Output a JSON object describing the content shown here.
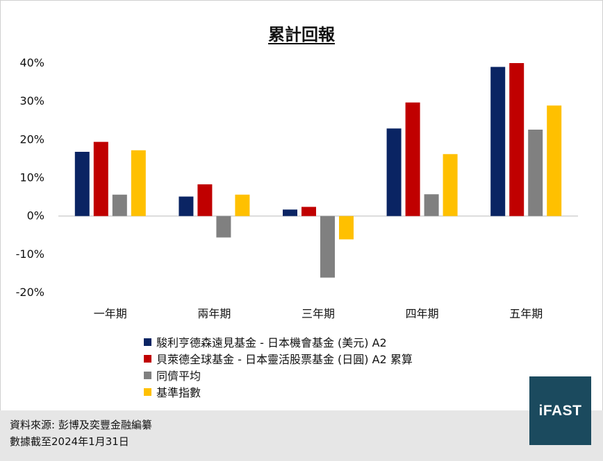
{
  "chart_data": {
    "type": "bar",
    "title": "累計回報",
    "categories": [
      "一年期",
      "兩年期",
      "三年期",
      "四年期",
      "五年期"
    ],
    "series": [
      {
        "name": "駿利亨德森遠見基金 - 日本機會基金 (美元) A2",
        "color": "#0a2463",
        "values": [
          16.8,
          5.1,
          1.7,
          22.9,
          39.0
        ]
      },
      {
        "name": "貝萊德全球基金 - 日本靈活股票基金 (日圓) A2 累算",
        "color": "#c00000",
        "values": [
          19.4,
          8.3,
          2.4,
          29.7,
          40.0
        ]
      },
      {
        "name": "同儕平均",
        "color": "#808080",
        "values": [
          5.6,
          -5.6,
          -16.1,
          5.7,
          22.6
        ]
      },
      {
        "name": "基準指數",
        "color": "#ffc000",
        "values": [
          17.2,
          5.6,
          -6.1,
          16.2,
          28.9
        ]
      }
    ],
    "ylim": [
      -20,
      40
    ],
    "yticks": [
      -20,
      -10,
      0,
      10,
      20,
      30,
      40
    ],
    "ytick_labels": [
      "-20%",
      "-10%",
      "0%",
      "10%",
      "20%",
      "30%",
      "40%"
    ],
    "legend_position": "bottom",
    "grid": false
  },
  "footer": {
    "source": "資料來源: 彭博及奕豐金融編纂",
    "date": "數據截至2024年1月31日"
  },
  "logo": {
    "text": "iFAST",
    "color": "#1b4a5e"
  }
}
